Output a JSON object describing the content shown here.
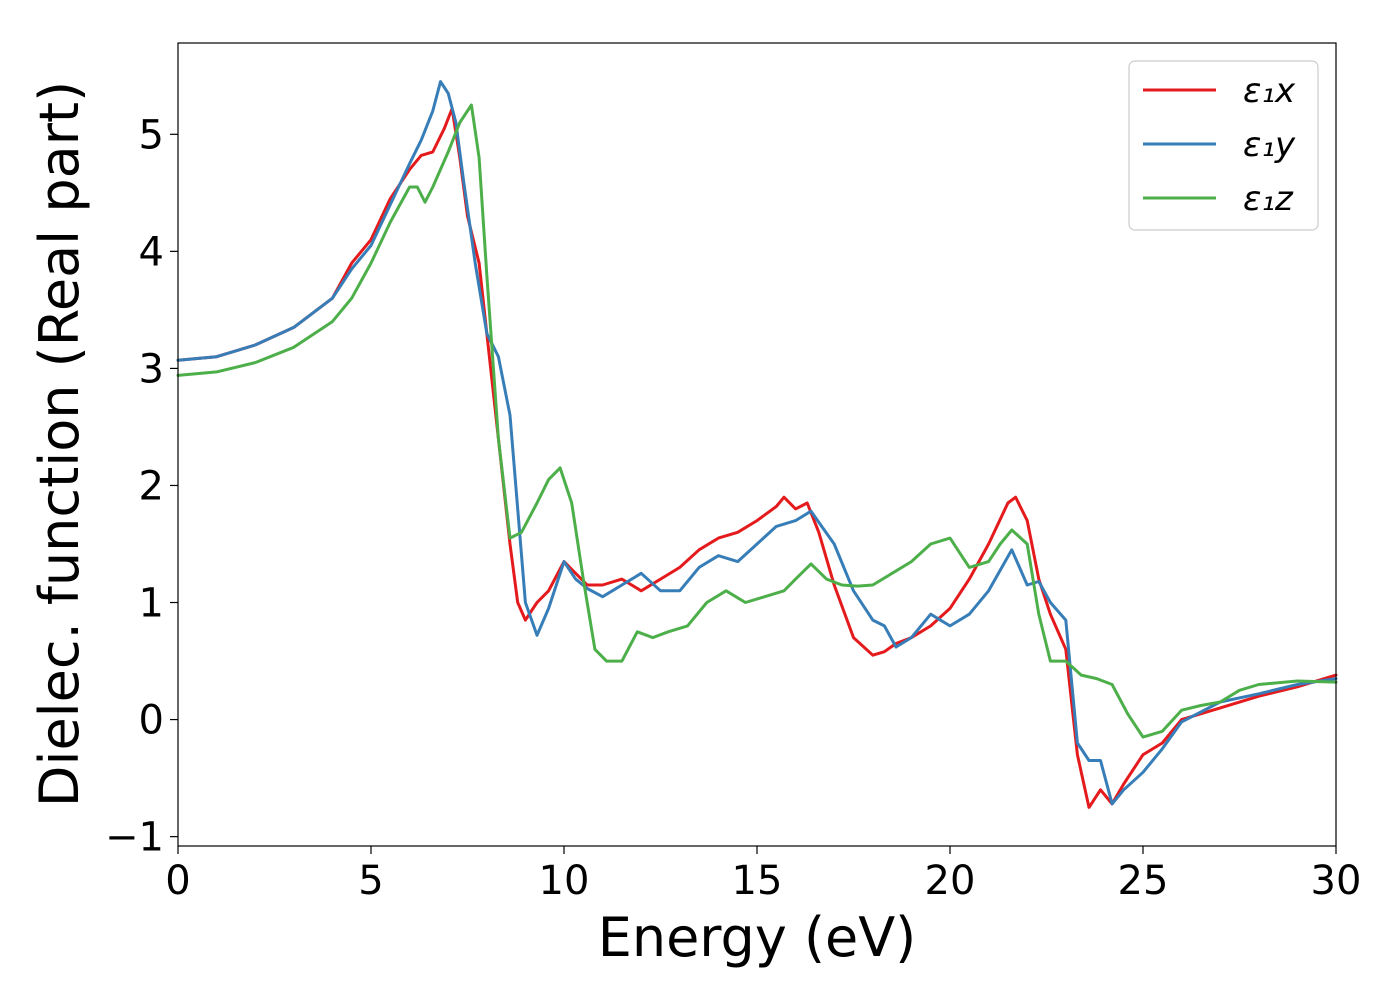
{
  "chart_data": {
    "type": "line",
    "title": "",
    "xlabel": "Energy (eV)",
    "ylabel": "Dielec. function (Real part)",
    "xlim": [
      0,
      30
    ],
    "ylim": [
      -1.08,
      5.78
    ],
    "xticks": [
      0,
      5,
      10,
      15,
      20,
      25,
      30
    ],
    "xtick_labels": [
      "0",
      "5",
      "10",
      "15",
      "20",
      "25",
      "30"
    ],
    "yticks": [
      -1,
      0,
      1,
      2,
      3,
      4,
      5
    ],
    "ytick_labels": [
      "−1",
      "0",
      "1",
      "2",
      "3",
      "4",
      "5"
    ],
    "grid": false,
    "legend_position": "top-right",
    "series": [
      {
        "name": "ε₁x",
        "color": "#e41a1c",
        "x": [
          0,
          1,
          2,
          3,
          4,
          4.5,
          5,
          5.5,
          6,
          6.3,
          6.6,
          6.9,
          7.1,
          7.3,
          7.5,
          7.8,
          8.0,
          8.3,
          8.6,
          8.8,
          9.0,
          9.3,
          9.6,
          10.0,
          10.3,
          10.6,
          11.0,
          11.5,
          12.0,
          12.5,
          13.0,
          13.5,
          14.0,
          14.5,
          15.0,
          15.5,
          15.7,
          16.0,
          16.3,
          16.6,
          17.0,
          17.5,
          18.0,
          18.3,
          18.6,
          19.0,
          19.5,
          20.0,
          20.5,
          21.0,
          21.5,
          21.7,
          22.0,
          22.3,
          22.6,
          23.0,
          23.3,
          23.6,
          23.9,
          24.2,
          24.5,
          25.0,
          25.5,
          26.0,
          27.0,
          28.0,
          29.0,
          30.0
        ],
        "values": [
          3.07,
          3.1,
          3.2,
          3.35,
          3.6,
          3.9,
          4.1,
          4.45,
          4.7,
          4.82,
          4.85,
          5.05,
          5.22,
          4.8,
          4.3,
          3.9,
          3.3,
          2.4,
          1.5,
          1.0,
          0.85,
          1.0,
          1.1,
          1.35,
          1.25,
          1.15,
          1.15,
          1.2,
          1.1,
          1.2,
          1.3,
          1.45,
          1.55,
          1.6,
          1.7,
          1.82,
          1.9,
          1.8,
          1.85,
          1.6,
          1.15,
          0.7,
          0.55,
          0.58,
          0.65,
          0.7,
          0.8,
          0.95,
          1.2,
          1.5,
          1.85,
          1.9,
          1.7,
          1.2,
          0.9,
          0.6,
          -0.3,
          -0.75,
          -0.6,
          -0.72,
          -0.55,
          -0.3,
          -0.2,
          0.0,
          0.1,
          0.2,
          0.28,
          0.38
        ]
      },
      {
        "name": "ε₁y",
        "color": "#377eb8",
        "x": [
          0,
          1,
          2,
          3,
          4,
          4.5,
          5,
          5.5,
          6,
          6.3,
          6.6,
          6.8,
          7.0,
          7.2,
          7.4,
          7.7,
          8.0,
          8.3,
          8.6,
          8.8,
          9.0,
          9.3,
          9.6,
          10.0,
          10.3,
          10.6,
          11.0,
          11.5,
          12.0,
          12.5,
          13.0,
          13.5,
          14.0,
          14.5,
          15.0,
          15.5,
          16.0,
          16.4,
          17.0,
          17.5,
          18.0,
          18.3,
          18.6,
          19.0,
          19.5,
          20.0,
          20.5,
          21.0,
          21.6,
          22.0,
          22.3,
          22.6,
          23.0,
          23.3,
          23.6,
          23.9,
          24.2,
          24.5,
          25.0,
          25.5,
          26.0,
          27.0,
          28.0,
          29.0,
          30.0
        ],
        "values": [
          3.07,
          3.1,
          3.2,
          3.35,
          3.6,
          3.85,
          4.05,
          4.4,
          4.75,
          4.95,
          5.2,
          5.45,
          5.35,
          5.1,
          4.6,
          3.9,
          3.3,
          3.1,
          2.6,
          1.8,
          1.0,
          0.72,
          0.95,
          1.35,
          1.2,
          1.12,
          1.05,
          1.15,
          1.25,
          1.1,
          1.1,
          1.3,
          1.4,
          1.35,
          1.5,
          1.65,
          1.7,
          1.78,
          1.5,
          1.1,
          0.85,
          0.8,
          0.62,
          0.7,
          0.9,
          0.8,
          0.9,
          1.1,
          1.45,
          1.15,
          1.18,
          1.0,
          0.85,
          -0.2,
          -0.35,
          -0.35,
          -0.72,
          -0.6,
          -0.45,
          -0.25,
          -0.02,
          0.15,
          0.22,
          0.3,
          0.35
        ]
      },
      {
        "name": "ε₁z",
        "color": "#4daf4a",
        "x": [
          0,
          1,
          2,
          3,
          4,
          4.5,
          5,
          5.5,
          6,
          6.2,
          6.4,
          6.6,
          7.0,
          7.3,
          7.6,
          7.8,
          8.0,
          8.3,
          8.6,
          8.9,
          9.3,
          9.6,
          9.9,
          10.2,
          10.5,
          10.8,
          11.1,
          11.5,
          11.9,
          12.3,
          12.7,
          13.2,
          13.7,
          14.2,
          14.7,
          15.2,
          15.7,
          16.0,
          16.4,
          16.8,
          17.2,
          17.6,
          18.0,
          18.5,
          19.0,
          19.5,
          20.0,
          20.5,
          21.0,
          21.3,
          21.6,
          22.0,
          22.3,
          22.6,
          23.0,
          23.4,
          23.8,
          24.2,
          24.6,
          25.0,
          25.5,
          26.0,
          26.5,
          27.0,
          27.5,
          28.0,
          29.0,
          30.0
        ],
        "values": [
          2.94,
          2.97,
          3.05,
          3.18,
          3.4,
          3.6,
          3.9,
          4.25,
          4.55,
          4.55,
          4.42,
          4.55,
          4.85,
          5.1,
          5.25,
          4.8,
          3.8,
          2.4,
          1.55,
          1.6,
          1.85,
          2.05,
          2.15,
          1.85,
          1.2,
          0.6,
          0.5,
          0.5,
          0.75,
          0.7,
          0.75,
          0.8,
          1.0,
          1.1,
          1.0,
          1.05,
          1.1,
          1.2,
          1.33,
          1.2,
          1.15,
          1.14,
          1.15,
          1.25,
          1.35,
          1.5,
          1.55,
          1.3,
          1.35,
          1.5,
          1.62,
          1.5,
          0.9,
          0.5,
          0.5,
          0.38,
          0.35,
          0.3,
          0.05,
          -0.15,
          -0.1,
          0.08,
          0.12,
          0.15,
          0.25,
          0.3,
          0.33,
          0.32
        ]
      }
    ]
  }
}
